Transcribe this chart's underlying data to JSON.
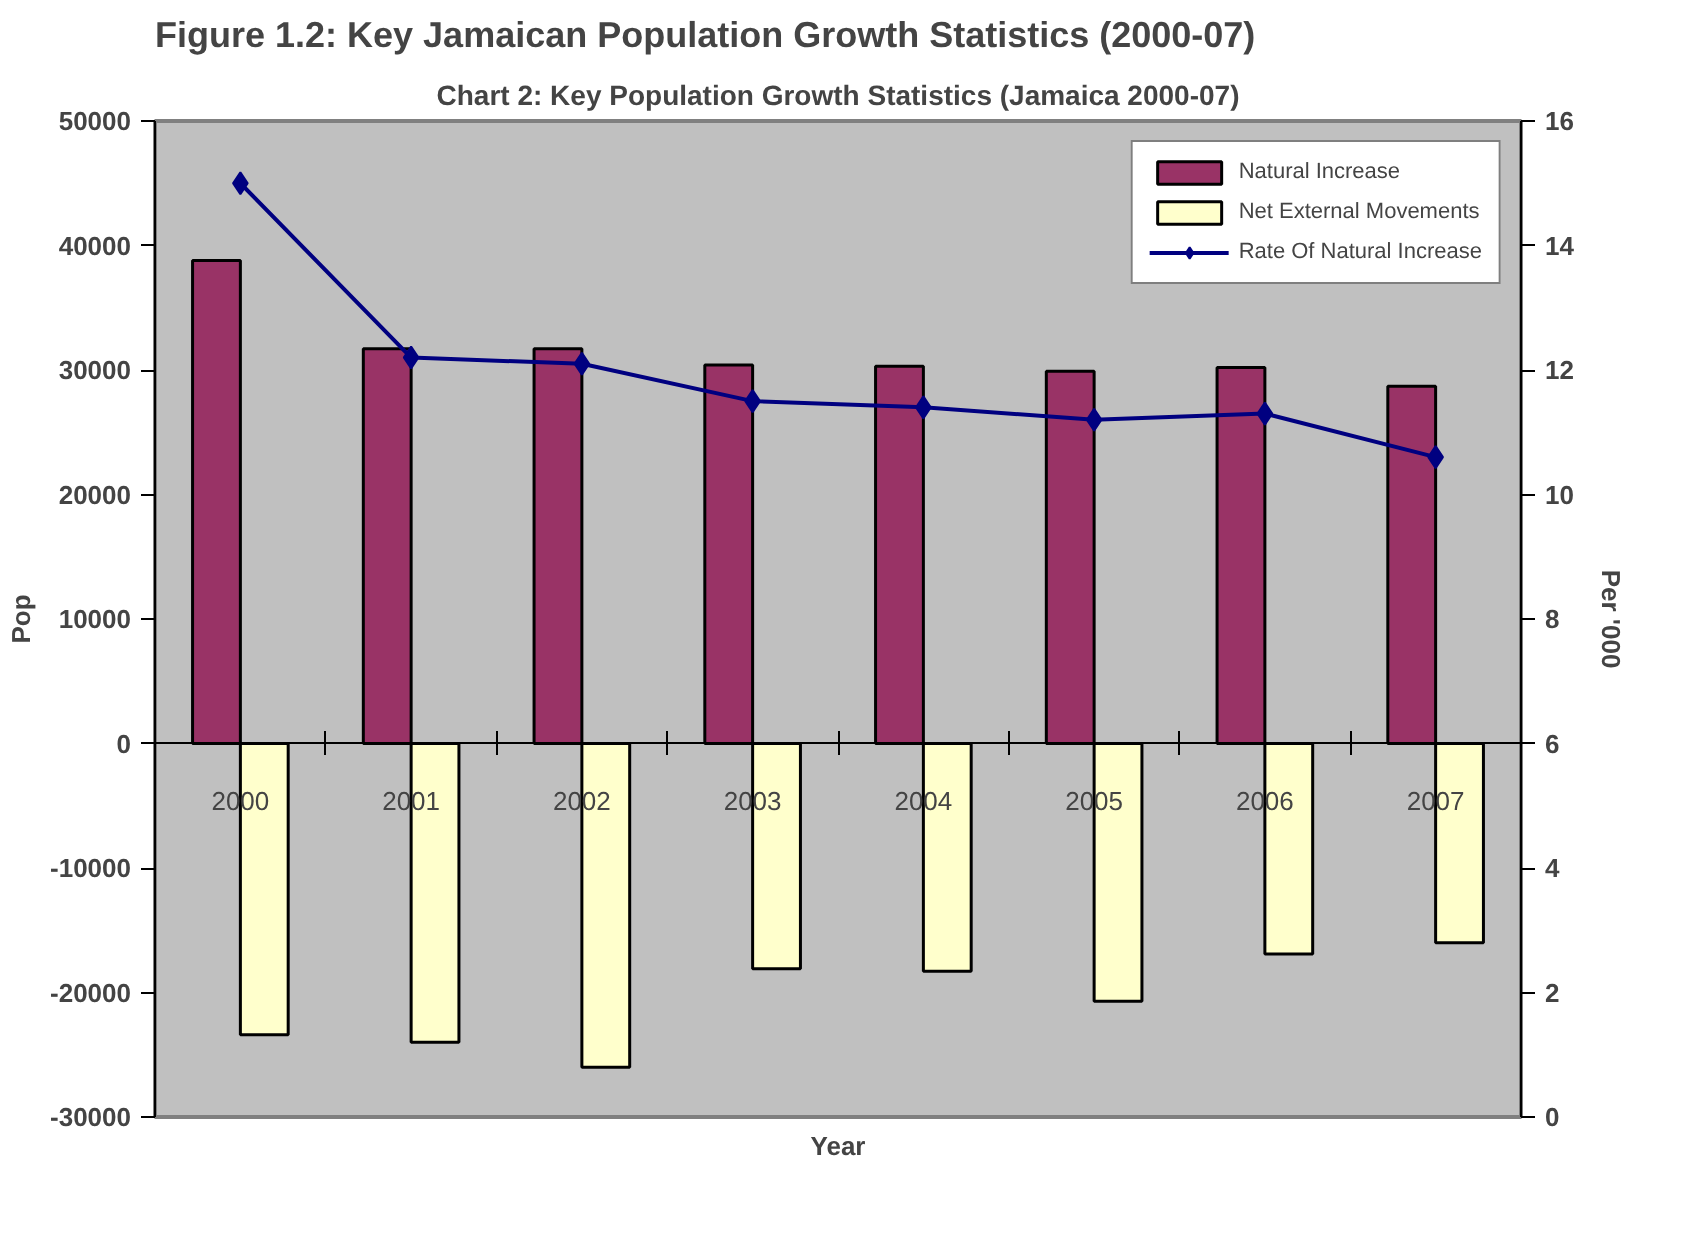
{
  "chart_data": {
    "type": "bar",
    "title": "Figure 1.2: Key Jamaican Population Growth Statistics (2000-07)",
    "subtitle": "Chart 2: Key Population Growth Statistics (Jamaica 2000-07)",
    "xlabel": "Year",
    "ylabel": "Pop",
    "y2label": "Per '000",
    "categories": [
      "2000",
      "2001",
      "2002",
      "2003",
      "2004",
      "2005",
      "2006",
      "2007"
    ],
    "series": [
      {
        "name": "Natural Increase",
        "color": "#993366",
        "values": [
          38800,
          31700,
          31700,
          30400,
          30300,
          29900,
          30200,
          28700
        ]
      },
      {
        "name": "Net External Movements",
        "color": "#ffffcc",
        "values": [
          -23400,
          -24000,
          -26000,
          -18100,
          -18300,
          -20700,
          -16900,
          -16000
        ]
      },
      {
        "name": "Rate Of Natural Increase",
        "type": "line",
        "axis": "y2",
        "color": "#000080",
        "marker": "diamond",
        "line_style": "solid",
        "values": [
          15.0,
          12.2,
          12.1,
          11.5,
          11.4,
          11.2,
          11.3,
          10.6
        ]
      }
    ],
    "ylim": [
      -30000,
      50000
    ],
    "yticks": [
      -30000,
      -20000,
      -10000,
      0,
      10000,
      20000,
      30000,
      40000,
      50000
    ],
    "y2lim": [
      0,
      16
    ],
    "y2ticks": [
      0,
      2,
      4,
      6,
      8,
      10,
      12,
      14,
      16
    ],
    "legend": "top right",
    "grid": false
  }
}
